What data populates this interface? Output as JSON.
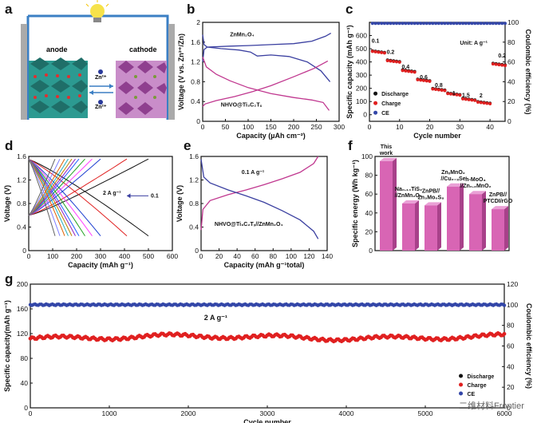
{
  "colors": {
    "discharge": "#111111",
    "charge": "#e02020",
    "ce": "#3346a8",
    "magenta": "#c0378f",
    "bar": "#d865b4",
    "blue": "#3a3fa0"
  },
  "panels": {
    "a": "a",
    "b": "b",
    "c": "c",
    "d": "d",
    "e": "e",
    "f": "f",
    "g": "g"
  },
  "schematic": {
    "anode": "anode",
    "cathode": "cathode",
    "ion1": "Zn²⁺",
    "ion2": "Zn²⁺"
  },
  "watermark": "二维材料Frontier",
  "chart_data": [
    {
      "id": "b",
      "type": "line",
      "xlabel": "Capacity (µAh cm⁻²)",
      "ylabel": "Voltage (V vs. Zn²⁺/Zn)",
      "xlim": [
        0,
        300
      ],
      "ylim": [
        0,
        2.0
      ],
      "xticks": [
        0,
        50,
        100,
        150,
        200,
        250,
        300
      ],
      "yticks": [
        0,
        0.4,
        0.8,
        1.2,
        1.6,
        2.0
      ],
      "annotations": [
        "ZnMn₂O₄",
        "NHVO@Ti₃C₂Tₓ"
      ],
      "series": [
        {
          "color": "blue",
          "points": [
            [
              0,
              1.75
            ],
            [
              3,
              1.55
            ],
            [
              10,
              1.5
            ],
            [
              40,
              1.47
            ],
            [
              80,
              1.44
            ],
            [
              105,
              1.4
            ],
            [
              120,
              1.32
            ],
            [
              150,
              1.34
            ],
            [
              190,
              1.31
            ],
            [
              230,
              1.2
            ],
            [
              260,
              1.02
            ],
            [
              280,
              0.8
            ]
          ]
        },
        {
          "color": "blue",
          "points": [
            [
              0,
              1.2
            ],
            [
              3,
              1.45
            ],
            [
              10,
              1.5
            ],
            [
              60,
              1.52
            ],
            [
              100,
              1.53
            ],
            [
              150,
              1.55
            ],
            [
              200,
              1.57
            ],
            [
              240,
              1.62
            ],
            [
              270,
              1.72
            ],
            [
              282,
              1.78
            ]
          ]
        },
        {
          "color": "magenta",
          "points": [
            [
              0,
              1.3
            ],
            [
              8,
              1.1
            ],
            [
              30,
              0.95
            ],
            [
              60,
              0.82
            ],
            [
              100,
              0.68
            ],
            [
              150,
              0.56
            ],
            [
              200,
              0.48
            ],
            [
              240,
              0.43
            ],
            [
              265,
              0.38
            ],
            [
              278,
              0.22
            ]
          ]
        },
        {
          "color": "magenta",
          "points": [
            [
              0,
              0.3
            ],
            [
              5,
              0.35
            ],
            [
              30,
              0.42
            ],
            [
              70,
              0.5
            ],
            [
              110,
              0.6
            ],
            [
              150,
              0.72
            ],
            [
              200,
              0.9
            ],
            [
              245,
              1.07
            ],
            [
              275,
              1.22
            ]
          ]
        }
      ]
    },
    {
      "id": "c",
      "type": "scatter",
      "xlabel": "Cycle number",
      "ylabel": "Specific capacity (mAh g⁻¹)",
      "y2label": "Coulombic efficiency (%)",
      "xlim": [
        0,
        45
      ],
      "ylim": [
        -50,
        700
      ],
      "y2lim": [
        0,
        100
      ],
      "xticks": [
        0,
        10,
        20,
        30,
        40
      ],
      "yticks": [
        0,
        100,
        200,
        300,
        400,
        500,
        600
      ],
      "y2ticks": [
        0,
        20,
        40,
        60,
        80,
        100
      ],
      "unit": "Unit: A g⁻¹",
      "rates": [
        {
          "label": "0.1",
          "x": 2,
          "y": 545
        },
        {
          "label": "0.2",
          "x": 7,
          "y": 460
        },
        {
          "label": "0.4",
          "x": 12,
          "y": 350
        },
        {
          "label": "0.6",
          "x": 18,
          "y": 270
        },
        {
          "label": "0.8",
          "x": 23,
          "y": 210
        },
        {
          "label": "1",
          "x": 28,
          "y": 150
        },
        {
          "label": "1.5",
          "x": 32,
          "y": 135
        },
        {
          "label": "2",
          "x": 37,
          "y": 130
        },
        {
          "label": "0.2",
          "x": 44,
          "y": 435
        }
      ],
      "steps": [
        {
          "from": 1,
          "to": 5,
          "val": 480
        },
        {
          "from": 6,
          "to": 10,
          "val": 410
        },
        {
          "from": 11,
          "to": 15,
          "val": 335
        },
        {
          "from": 16,
          "to": 20,
          "val": 265
        },
        {
          "from": 21,
          "to": 25,
          "val": 195
        },
        {
          "from": 26,
          "to": 30,
          "val": 160
        },
        {
          "from": 31,
          "to": 35,
          "val": 120
        },
        {
          "from": 36,
          "to": 40,
          "val": 95
        },
        {
          "from": 41,
          "to": 45,
          "val": 385
        }
      ],
      "ce": 99,
      "legend": [
        "Discharge",
        "Charge",
        "CE"
      ]
    },
    {
      "id": "d",
      "type": "line",
      "xlabel": "Capacity (mAh g⁻¹)",
      "ylabel": "Voltage (V)",
      "xlim": [
        0,
        600
      ],
      "ylim": [
        0,
        1.6
      ],
      "xticks": [
        0,
        100,
        200,
        300,
        400,
        500,
        600
      ],
      "yticks": [
        0,
        0.4,
        0.8,
        1.2,
        1.6
      ],
      "annotation_left": "2 A g⁻¹",
      "annotation_right": "0.1",
      "capacities": [
        500,
        410,
        300,
        265,
        235,
        210,
        195,
        180,
        165,
        150,
        130,
        110
      ],
      "palette": [
        "#111111",
        "#e02020",
        "#1a3cd0",
        "#ff40ff",
        "#20a020",
        "#2060ff",
        "#9020c0",
        "#c08000",
        "#20b0c0",
        "#e06000",
        "#8080ff",
        "#606060"
      ]
    },
    {
      "id": "e",
      "type": "line",
      "xlabel": "Capacity (mAh g⁻¹total)",
      "ylabel": "Voltage (V)",
      "xlim": [
        0,
        140
      ],
      "ylim": [
        0,
        1.6
      ],
      "xticks": [
        0,
        20,
        40,
        60,
        80,
        100,
        120,
        140
      ],
      "yticks": [
        0,
        0.4,
        0.8,
        1.2,
        1.6
      ],
      "annotations": [
        "0.1 A g⁻¹",
        "NHVO@Ti₃C₂Tₓ//ZnMn₂O₄"
      ],
      "series": [
        {
          "color": "magenta",
          "points": [
            [
              0,
              0.35
            ],
            [
              2,
              0.7
            ],
            [
              10,
              0.85
            ],
            [
              30,
              0.95
            ],
            [
              50,
              1.03
            ],
            [
              70,
              1.12
            ],
            [
              90,
              1.22
            ],
            [
              110,
              1.33
            ],
            [
              125,
              1.48
            ],
            [
              130,
              1.6
            ]
          ]
        },
        {
          "color": "blue",
          "points": [
            [
              0,
              1.55
            ],
            [
              3,
              1.25
            ],
            [
              10,
              1.15
            ],
            [
              30,
              1.03
            ],
            [
              50,
              0.93
            ],
            [
              70,
              0.82
            ],
            [
              90,
              0.68
            ],
            [
              110,
              0.52
            ],
            [
              125,
              0.33
            ],
            [
              130,
              0.2
            ]
          ]
        }
      ]
    },
    {
      "id": "f",
      "type": "bar",
      "ylabel": "Specific energy (Wh kg⁻¹)",
      "ylim": [
        0,
        100
      ],
      "yticks": [
        0,
        20,
        40,
        60,
        80,
        100
      ],
      "categories": [
        "This work",
        "Na₀.₁₄TiS₂ //ZnMn₂O₄",
        "ZnPB// Zn₃Mo₆S₈",
        "ZnₓMnO₂ //Cu₂₋ₓSe",
        "h-MoO₃ //Zn₀.₂MnO₂",
        "ZnPB// PTCDI/rGO"
      ],
      "values": [
        95,
        50,
        48,
        68,
        60,
        44
      ]
    },
    {
      "id": "g",
      "type": "scatter",
      "xlabel": "Cycle number",
      "ylabel": "Specific capacity(mAh g⁻¹)",
      "y2label": "Coulombic efficiency (%)",
      "xlim": [
        0,
        6000
      ],
      "ylim": [
        0,
        200
      ],
      "y2lim": [
        0,
        120
      ],
      "xticks": [
        0,
        1000,
        2000,
        3000,
        4000,
        5000,
        6000
      ],
      "yticks": [
        0,
        40,
        80,
        120,
        160,
        200
      ],
      "y2ticks": [
        0,
        20,
        40,
        60,
        80,
        100,
        120
      ],
      "annotation": "2 A g⁻¹",
      "capacity_mean": 114,
      "ce": 100,
      "legend": [
        "Discharge",
        "Charge",
        "CE"
      ]
    }
  ]
}
